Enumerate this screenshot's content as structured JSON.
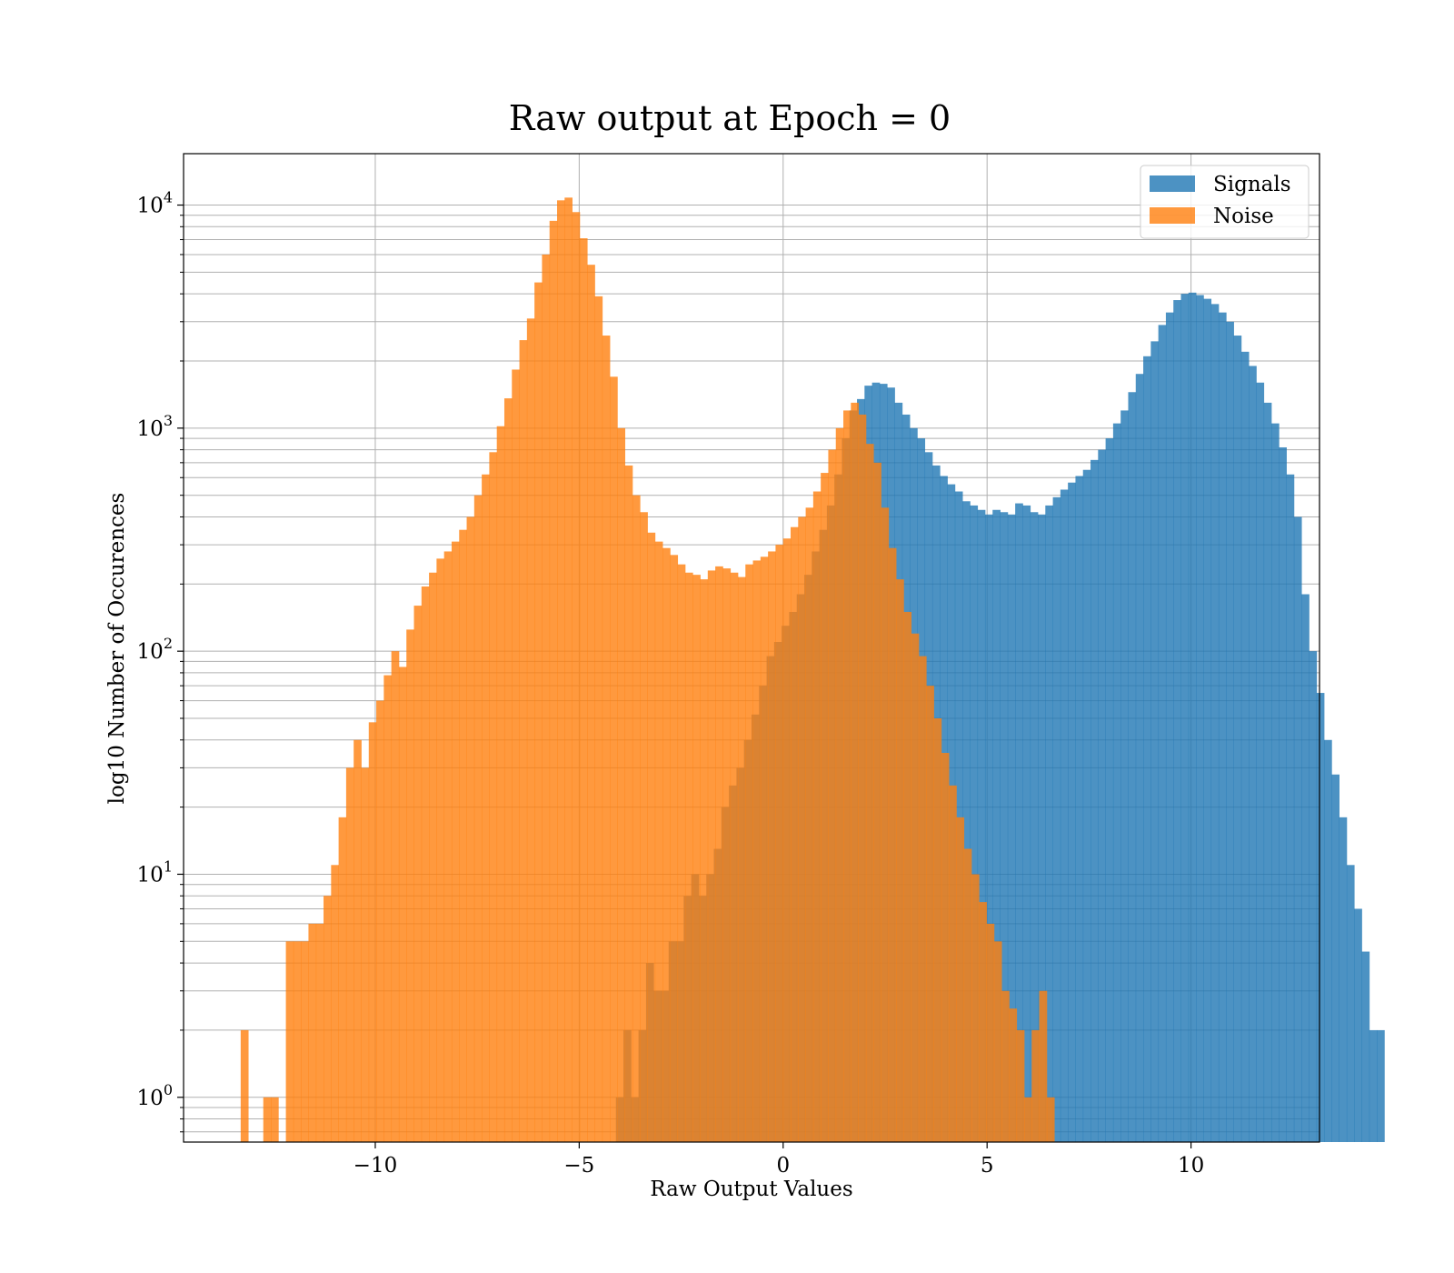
{
  "chart_data": {
    "type": "bar",
    "subtype": "histogram",
    "title": "Raw output at Epoch = 0",
    "xlabel": "Raw Output Values",
    "ylabel": "log10 Number of Occurences",
    "xlim": [
      -14.7,
      13.15
    ],
    "ylim": [
      0.63,
      17000
    ],
    "yscale": "log",
    "grid": "on (major and minor)",
    "legend_position": "top-right",
    "x_ticks": [
      {
        "value": -10,
        "label": "−10"
      },
      {
        "value": -5,
        "label": "−5"
      },
      {
        "value": 0,
        "label": "0"
      },
      {
        "value": 5,
        "label": "5"
      },
      {
        "value": 10,
        "label": "10"
      }
    ],
    "y_ticks": [
      {
        "value": 1,
        "base": "10",
        "exp": "0"
      },
      {
        "value": 10,
        "base": "10",
        "exp": "1"
      },
      {
        "value": 100,
        "base": "10",
        "exp": "2"
      },
      {
        "value": 1000,
        "base": "10",
        "exp": "3"
      },
      {
        "value": 10000,
        "base": "10",
        "exp": "4"
      }
    ],
    "colors": {
      "signals": "#1f77b4",
      "noise": "#ff7f0e"
    },
    "series": [
      {
        "name": "Signals",
        "color": "#1f77b4",
        "opacity": 0.8,
        "bin_start": -4.1,
        "bin_width": 0.1847,
        "counts": [
          1,
          2,
          1,
          2,
          4,
          3,
          3,
          5,
          5,
          8,
          10,
          8,
          10,
          13,
          20,
          25,
          30,
          40,
          52,
          70,
          95,
          110,
          130,
          150,
          180,
          220,
          280,
          350,
          450,
          620,
          900,
          1200,
          1350,
          1550,
          1600,
          1580,
          1520,
          1300,
          1150,
          1000,
          900,
          780,
          680,
          610,
          560,
          520,
          470,
          450,
          430,
          410,
          430,
          420,
          410,
          460,
          450,
          420,
          410,
          450,
          490,
          530,
          570,
          610,
          650,
          720,
          800,
          900,
          1050,
          1200,
          1450,
          1750,
          2100,
          2450,
          2900,
          3300,
          3750,
          4000,
          4050,
          3950,
          3800,
          3600,
          3300,
          3000,
          2600,
          2200,
          1900,
          1600,
          1300,
          1050,
          820,
          620,
          400,
          180,
          100,
          65,
          40,
          28,
          18,
          11,
          7,
          4.5,
          2,
          2
        ]
      },
      {
        "name": "Noise",
        "color": "#ff7f0e",
        "opacity": 0.8,
        "bin_start": -13.3,
        "bin_width": 0.1847,
        "counts": [
          2,
          0,
          0,
          1,
          1,
          0,
          5,
          5,
          5,
          6,
          6,
          8,
          11,
          18,
          30,
          40,
          30,
          48,
          60,
          78,
          100,
          85,
          125,
          160,
          195,
          225,
          260,
          280,
          310,
          350,
          400,
          500,
          620,
          780,
          1020,
          1360,
          1830,
          2480,
          3100,
          4500,
          6000,
          8500,
          10500,
          10800,
          9300,
          7100,
          5400,
          3900,
          2600,
          1700,
          1000,
          680,
          500,
          420,
          340,
          310,
          290,
          270,
          245,
          225,
          220,
          210,
          230,
          240,
          235,
          225,
          215,
          245,
          255,
          265,
          280,
          300,
          320,
          360,
          400,
          440,
          520,
          630,
          800,
          1000,
          1200,
          1300,
          1150,
          850,
          700,
          440,
          290,
          210,
          150,
          120,
          95,
          70,
          50,
          35,
          25,
          18,
          13,
          10,
          7.5,
          6,
          5,
          3,
          2.5,
          2,
          1,
          2,
          3,
          1
        ]
      }
    ]
  }
}
